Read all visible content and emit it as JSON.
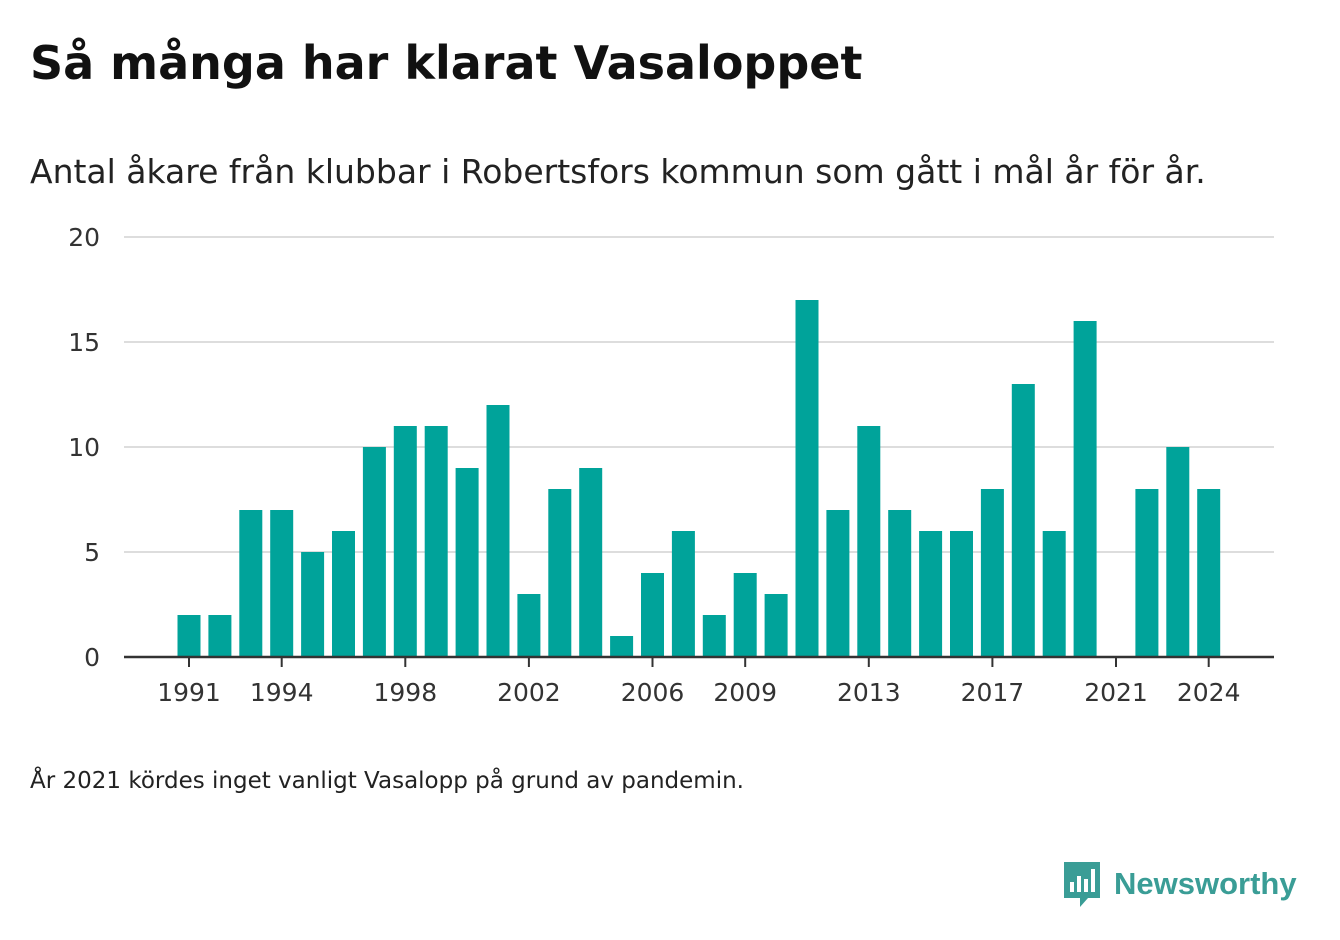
{
  "title": "Så många har klarat Vasaloppet",
  "subtitle": "Antal åkare från klubbar i Robertsfors kommun som gått i mål år för år.",
  "note": "År 2021 kördes inget vanligt Vasalopp på grund av pandemin.",
  "brand": {
    "name": "Newsworthy",
    "icon": "newsworthy-chart-bubble-icon"
  },
  "colors": {
    "bar": "#00a39a",
    "grid": "#dddddd",
    "axis": "#333333",
    "brand": "#3a9d96"
  },
  "chart_data": {
    "type": "bar",
    "x": [
      1991,
      1992,
      1993,
      1994,
      1995,
      1996,
      1997,
      1998,
      1999,
      2000,
      2001,
      2002,
      2003,
      2004,
      2005,
      2006,
      2007,
      2008,
      2009,
      2010,
      2011,
      2012,
      2013,
      2014,
      2015,
      2016,
      2017,
      2018,
      2019,
      2020,
      2021,
      2022,
      2023,
      2024
    ],
    "values": [
      2,
      2,
      7,
      7,
      5,
      6,
      10,
      11,
      11,
      9,
      12,
      3,
      8,
      9,
      1,
      4,
      6,
      2,
      4,
      3,
      17,
      7,
      11,
      7,
      6,
      6,
      8,
      13,
      6,
      16,
      null,
      8,
      10,
      8
    ],
    "x_tick_labels": [
      "1991",
      "1994",
      "1998",
      "2002",
      "2006",
      "2009",
      "2013",
      "2017",
      "2021",
      "2024"
    ],
    "y_ticks": [
      0,
      5,
      10,
      15,
      20
    ],
    "ylim": [
      0,
      20
    ],
    "grid": true,
    "legend": "none"
  }
}
